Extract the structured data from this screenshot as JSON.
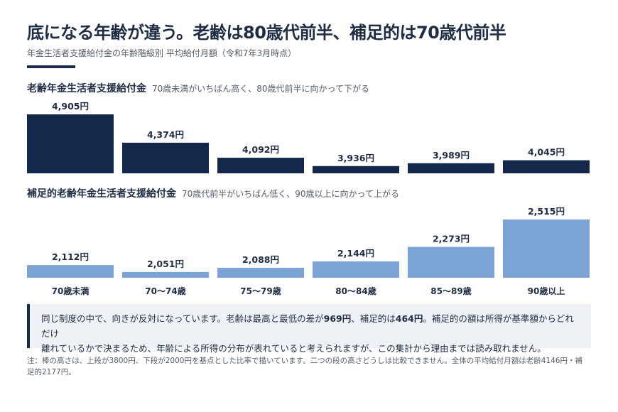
{
  "header": {
    "title": "底になる年齢が違う。老齢は80歳代前半、補足的は70歳代前半",
    "subtitle": "年金生活者支援給付金の年齢階級別 平均給付月額（令和7年3月時点）"
  },
  "chart_data": [
    {
      "type": "bar",
      "title": "老齢年金生活者支援給付金",
      "subtitle": "70歳未満がいちばん高く、80歳代前半に向かって下がる",
      "categories": [
        "70歳未満",
        "70〜74歳",
        "75〜79歳",
        "80〜84歳",
        "85〜89歳",
        "90歳以上"
      ],
      "values": [
        4905,
        4374,
        4092,
        3936,
        3989,
        4045
      ],
      "value_labels": [
        "4,905円",
        "4,374円",
        "4,092円",
        "3,936円",
        "3,989円",
        "4,045円"
      ],
      "baseline": 3800,
      "color": "#13284a"
    },
    {
      "type": "bar",
      "title": "補足的老齢年金生活者支援給付金",
      "subtitle": "70歳代前半がいちばん低く、90歳以上に向かって上がる",
      "categories": [
        "70歳未満",
        "70〜74歳",
        "75〜79歳",
        "80〜84歳",
        "85〜89歳",
        "90歳以上"
      ],
      "values": [
        2112,
        2051,
        2088,
        2144,
        2273,
        2515
      ],
      "value_labels": [
        "2,112円",
        "2,051円",
        "2,088円",
        "2,144円",
        "2,273円",
        "2,515円"
      ],
      "baseline": 2000,
      "color": "#7ba3d4"
    }
  ],
  "callout": {
    "line1_a": "同じ制度の中で、向きが反対になっています。老齢は最高と最低の差が",
    "line1_b": "969円",
    "line1_c": "、補足的は",
    "line1_d": "464円",
    "line1_e": "。補足的の額は所得が基準額からどれだけ",
    "line2": "離れているかで決まるため、年齢による所得の分布が表れていると考えられますが、この集計から理由までは読み取れません。"
  },
  "footnote": "注：棒の高さは、上段が3800円、下段が2000円を基点とした比率で描いています。二つの段の高さどうしは比較できません。全体の平均給付月額は老齢4146円・補足的2177円。"
}
